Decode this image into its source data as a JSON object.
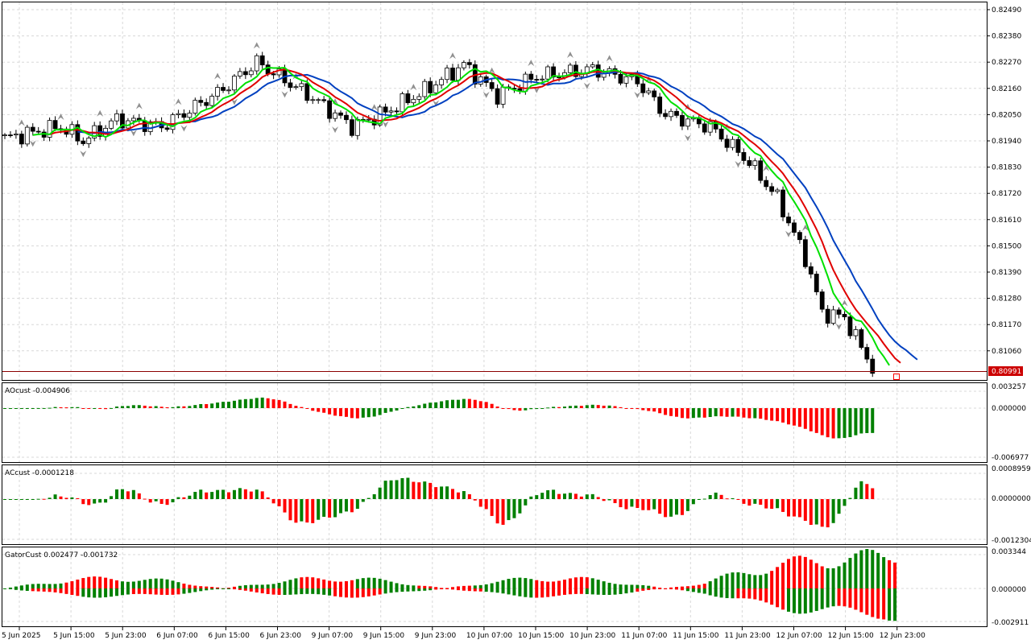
{
  "colors": {
    "background": "#ffffff",
    "frame": "#000000",
    "grid": "#d8d8d8",
    "candle_up_fill": "#ffffff",
    "candle_down_fill": "#000000",
    "ma_fast": "#00e000",
    "ma_mid": "#e00000",
    "ma_slow": "#0040c0",
    "hist_up": "#008000",
    "hist_down": "#ff0000",
    "fractal": "#909090",
    "bid_line": "#8b0000",
    "price_tag_bg": "#cc0000"
  },
  "main_chart": {
    "price_axis": [
      "0.82490",
      "0.82380",
      "0.82270",
      "0.82160",
      "0.82050",
      "0.81940",
      "0.81830",
      "0.81720",
      "0.81610",
      "0.81500",
      "0.81390",
      "0.81280",
      "0.81170",
      "0.81060"
    ],
    "current_price": "0.80991",
    "y_range": [
      0.8103,
      0.8253
    ]
  },
  "panels": {
    "ao": {
      "title": "AOcust -0.004906",
      "axis": [
        "0.003257",
        "0.000000",
        "-0.006977"
      ]
    },
    "ac": {
      "title": "ACcust -0.0001218",
      "axis": [
        "0.0008959",
        "0.0000000",
        "-0.0012304"
      ]
    },
    "gator": {
      "title": "GatorCust 0.002477 -0.001732",
      "axis": [
        "0.003344",
        "0.000000",
        "-0.002911"
      ]
    }
  },
  "time_axis": [
    "5 Jun 2025",
    "5 Jun 15:00",
    "5 Jun 23:00",
    "6 Jun 07:00",
    "6 Jun 15:00",
    "6 Jun 23:00",
    "9 Jun 07:00",
    "9 Jun 15:00",
    "9 Jun 23:00",
    "10 Jun 07:00",
    "10 Jun 15:00",
    "10 Jun 23:00",
    "11 Jun 07:00",
    "11 Jun 15:00",
    "11 Jun 23:00",
    "12 Jun 07:00",
    "12 Jun 15:00",
    "12 Jun 23:00"
  ]
}
